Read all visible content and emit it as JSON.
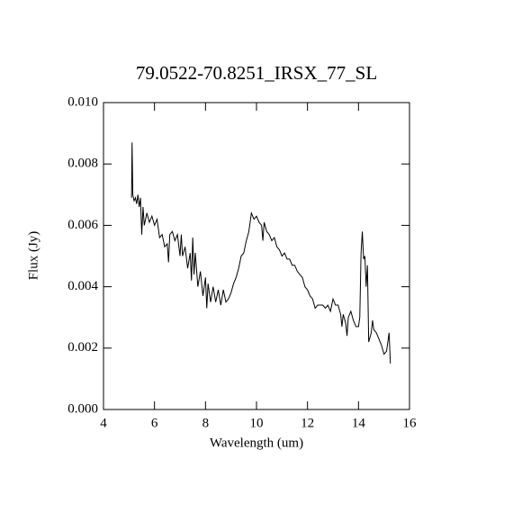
{
  "chart_data": {
    "type": "line",
    "title": "79.0522-70.8251_IRSX_77_SL",
    "x_label": "Wavelength (um)",
    "y_label": "Flux (Jy)",
    "color": "#000000",
    "xlim": [
      4,
      16
    ],
    "xticks": [
      4,
      6,
      8,
      10,
      12,
      14,
      16
    ],
    "ylim": [
      0,
      0.01
    ],
    "yticks": [
      {
        "value": 0,
        "label": "0.000"
      },
      0.002,
      0.004,
      0.006,
      0.008,
      {
        "value": 0.01,
        "label": "0.010"
      }
    ],
    "x": [
      5.1,
      5.12,
      5.15,
      5.2,
      5.25,
      5.3,
      5.35,
      5.4,
      5.45,
      5.5,
      5.55,
      5.6,
      5.7,
      5.8,
      5.9,
      6.0,
      6.1,
      6.2,
      6.3,
      6.4,
      6.5,
      6.55,
      6.6,
      6.7,
      6.8,
      6.9,
      7.0,
      7.05,
      7.1,
      7.2,
      7.3,
      7.4,
      7.45,
      7.5,
      7.55,
      7.6,
      7.7,
      7.8,
      7.9,
      8.0,
      8.05,
      8.1,
      8.2,
      8.3,
      8.4,
      8.5,
      8.6,
      8.7,
      8.8,
      8.9,
      9.0,
      9.1,
      9.2,
      9.3,
      9.4,
      9.5,
      9.6,
      9.7,
      9.8,
      9.9,
      10.0,
      10.1,
      10.2,
      10.25,
      10.3,
      10.4,
      10.5,
      10.6,
      10.7,
      10.8,
      10.9,
      11.0,
      11.1,
      11.2,
      11.3,
      11.4,
      11.5,
      11.6,
      11.7,
      11.8,
      11.9,
      12.0,
      12.1,
      12.2,
      12.3,
      12.4,
      12.5,
      12.6,
      12.7,
      12.8,
      12.9,
      13.0,
      13.1,
      13.2,
      13.3,
      13.35,
      13.4,
      13.5,
      13.55,
      13.6,
      13.7,
      13.8,
      13.9,
      14.0,
      14.05,
      14.1,
      14.15,
      14.2,
      14.25,
      14.3,
      14.35,
      14.4,
      14.5,
      14.55,
      14.6,
      14.7,
      14.8,
      14.9,
      15.0,
      15.1,
      15.2,
      15.25
    ],
    "values": [
      0.0069,
      0.0087,
      0.007,
      0.0068,
      0.0069,
      0.0067,
      0.007,
      0.0066,
      0.0069,
      0.0057,
      0.0066,
      0.006,
      0.0064,
      0.0061,
      0.0063,
      0.006,
      0.0062,
      0.0056,
      0.0057,
      0.0053,
      0.0054,
      0.0048,
      0.0057,
      0.0058,
      0.0055,
      0.0057,
      0.005,
      0.0057,
      0.005,
      0.0053,
      0.0046,
      0.0051,
      0.0042,
      0.0056,
      0.0044,
      0.0051,
      0.004,
      0.0045,
      0.0037,
      0.0043,
      0.0033,
      0.0041,
      0.0035,
      0.004,
      0.0035,
      0.0039,
      0.0034,
      0.0039,
      0.0035,
      0.0036,
      0.0038,
      0.0041,
      0.0043,
      0.0046,
      0.005,
      0.0051,
      0.0055,
      0.0058,
      0.0064,
      0.0062,
      0.0063,
      0.0061,
      0.006,
      0.0055,
      0.0061,
      0.0058,
      0.0057,
      0.0055,
      0.0056,
      0.0053,
      0.0052,
      0.005,
      0.0051,
      0.0049,
      0.0049,
      0.0047,
      0.0047,
      0.0045,
      0.0044,
      0.0043,
      0.004,
      0.0039,
      0.0037,
      0.0036,
      0.0033,
      0.0034,
      0.0034,
      0.0034,
      0.0033,
      0.0034,
      0.0032,
      0.0036,
      0.0034,
      0.0034,
      0.0031,
      0.0027,
      0.0031,
      0.0028,
      0.0024,
      0.003,
      0.0032,
      0.0029,
      0.0027,
      0.0027,
      0.003,
      0.0051,
      0.0058,
      0.0049,
      0.005,
      0.004,
      0.0047,
      0.0022,
      0.0025,
      0.0029,
      0.0026,
      0.0025,
      0.0023,
      0.0021,
      0.0018,
      0.0019,
      0.0025,
      0.0015
    ]
  }
}
